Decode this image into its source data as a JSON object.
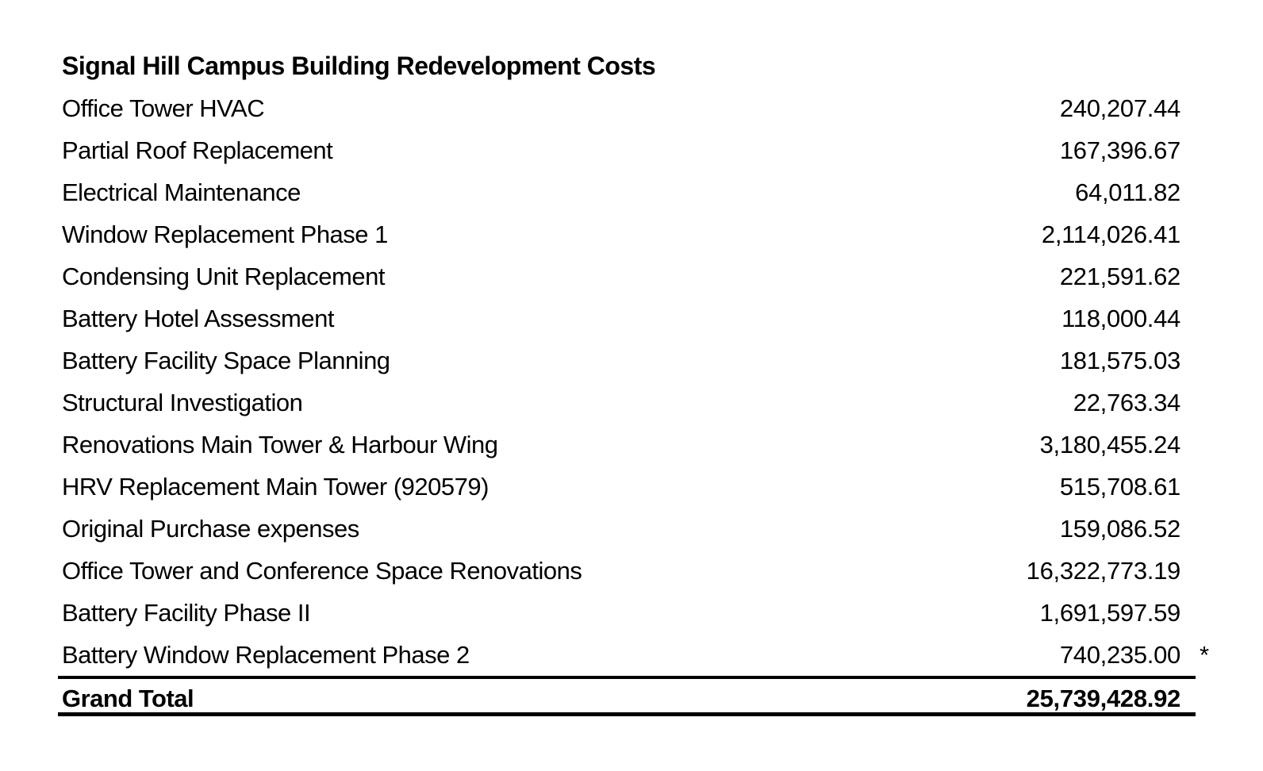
{
  "document": {
    "title": "Signal Hill Campus Building Redevelopment Costs",
    "rows": [
      {
        "label": "Office Tower HVAC",
        "amount": "240,207.44",
        "marker": ""
      },
      {
        "label": "Partial Roof Replacement",
        "amount": "167,396.67",
        "marker": ""
      },
      {
        "label": "Electrical Maintenance",
        "amount": "64,011.82",
        "marker": ""
      },
      {
        "label": "Window Replacement Phase 1",
        "amount": "2,114,026.41",
        "marker": ""
      },
      {
        "label": "Condensing Unit Replacement",
        "amount": "221,591.62",
        "marker": ""
      },
      {
        "label": "Battery Hotel Assessment",
        "amount": "118,000.44",
        "marker": ""
      },
      {
        "label": "Battery Facility Space Planning",
        "amount": "181,575.03",
        "marker": ""
      },
      {
        "label": "Structural Investigation",
        "amount": "22,763.34",
        "marker": ""
      },
      {
        "label": "Renovations Main Tower & Harbour Wing",
        "amount": "3,180,455.24",
        "marker": ""
      },
      {
        "label": "HRV Replacement Main Tower (920579)",
        "amount": "515,708.61",
        "marker": ""
      },
      {
        "label": "Original Purchase expenses",
        "amount": "159,086.52",
        "marker": ""
      },
      {
        "label": "Office Tower and Conference Space Renovations",
        "amount": "16,322,773.19",
        "marker": ""
      },
      {
        "label": "Battery Facility Phase II",
        "amount": "1,691,597.59",
        "marker": ""
      },
      {
        "label": "Battery Window Replacement Phase 2",
        "amount": "740,235.00",
        "marker": "*"
      }
    ],
    "grand_total": {
      "label": "Grand Total",
      "amount": "25,739,428.92"
    },
    "colors": {
      "text": "#000000",
      "background": "#ffffff",
      "rule": "#000000"
    }
  }
}
